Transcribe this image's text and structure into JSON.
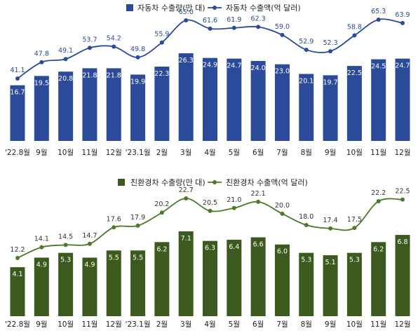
{
  "chart_data": [
    {
      "type": "bar",
      "categories": [
        "'22.8월",
        "9월",
        "10월",
        "11월",
        "12월",
        "'23.1월",
        "2월",
        "3월",
        "4월",
        "5월",
        "6월",
        "7월",
        "8월",
        "9월",
        "10월",
        "11월",
        "12월"
      ],
      "series": [
        {
          "name": "자동차 수출량(만 대)",
          "kind": "bar",
          "values": [
            16.7,
            19.5,
            20.8,
            21.8,
            21.8,
            19.9,
            22.3,
            26.3,
            24.9,
            24.7,
            24.0,
            23.0,
            20.1,
            19.7,
            22.5,
            24.5,
            24.7
          ]
        },
        {
          "name": "자동차 수출액(억 달러)",
          "kind": "line",
          "values": [
            41.1,
            47.8,
            49.1,
            53.7,
            54.2,
            49.8,
            55.9,
            65.0,
            61.6,
            61.9,
            62.3,
            59.0,
            52.9,
            52.3,
            58.8,
            65.3,
            63.9
          ]
        }
      ],
      "colors": {
        "bar": "#2b4a9a",
        "line": "#2b4a9a",
        "line_label": "#2b4a9a"
      }
    },
    {
      "type": "bar",
      "categories": [
        "'22.8월",
        "9월",
        "10월",
        "11월",
        "12월",
        "'23.1월",
        "2월",
        "3월",
        "4월",
        "5월",
        "6월",
        "7월",
        "8월",
        "9월",
        "10월",
        "11월",
        "12월"
      ],
      "series": [
        {
          "name": "친환경차 수출량(만 대)",
          "kind": "bar",
          "values": [
            4.1,
            4.9,
            5.3,
            4.9,
            5.5,
            5.5,
            6.2,
            7.1,
            6.3,
            6.4,
            6.6,
            6.0,
            5.3,
            5.1,
            5.3,
            6.2,
            6.8
          ]
        },
        {
          "name": "친환경차 수출액(억 달러)",
          "kind": "line",
          "values": [
            12.2,
            14.1,
            14.5,
            14.7,
            17.6,
            17.9,
            20.2,
            22.7,
            20.5,
            21.0,
            22.1,
            20.0,
            18.0,
            17.4,
            17.5,
            22.2,
            22.5
          ]
        }
      ],
      "colors": {
        "bar": "#3d5a1e",
        "line": "#4a7a2a",
        "line_label": "#333333"
      }
    }
  ]
}
